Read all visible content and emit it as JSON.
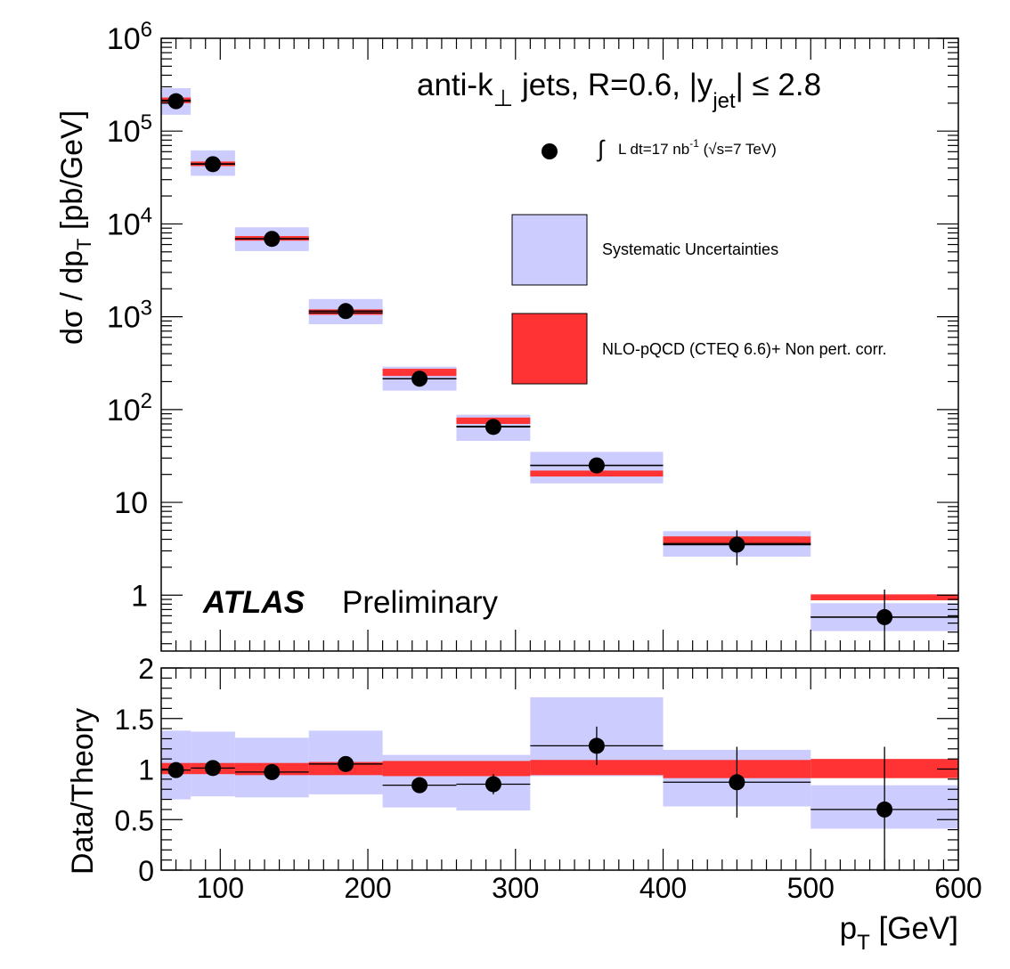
{
  "colors": {
    "systematic": "#ccccff",
    "nlo": "#ff3333",
    "data": "#000000"
  },
  "annotations": {
    "jet_label": "anti-k⊥  jets,  R=0.6,  |yjet| ≤ 2.8",
    "jet_label_prefix": "anti-k",
    "jet_label_perp": "⊥",
    "jet_label_mid": "  jets,  R=0.6,  |y",
    "jet_label_sub": "jet",
    "jet_label_suffix": "| ≤ 2.8",
    "atlas": "ATLAS",
    "preliminary": "Preliminary"
  },
  "legend": {
    "data_label": "∫ L dt=17 nb-1 (√s=7 TeV)",
    "data_label_integral": "∫",
    "data_label_text": "L dt=17 nb",
    "data_label_sup": "-1",
    "data_label_energy": " (√s=7 TeV)",
    "syst_label": "Systematic Uncertainties",
    "nlo_label": "NLO-pQCD (CTEQ 6.6)+ Non pert. corr."
  },
  "chart_data": [
    {
      "type": "scatter",
      "name": "cross-section",
      "title": "",
      "ylabel": "dσ / dpT [pb/GeV]",
      "ylabel_prefix": "dσ / dp",
      "ylabel_sub": "T",
      "ylabel_suffix": " [pb/GeV]",
      "yscale": "log",
      "xlim": [
        60,
        600
      ],
      "ylim": [
        0.25,
        1000000
      ],
      "yticks": [
        {
          "value": 1,
          "label": "1"
        },
        {
          "value": 10,
          "label": "10"
        },
        {
          "value": 100,
          "label": "10",
          "exp": "2"
        },
        {
          "value": 1000,
          "label": "10",
          "exp": "3"
        },
        {
          "value": 10000,
          "label": "10",
          "exp": "4"
        },
        {
          "value": 100000,
          "label": "10",
          "exp": "5"
        },
        {
          "value": 1000000,
          "label": "10",
          "exp": "6"
        }
      ],
      "bins": [
        {
          "lo": 60,
          "hi": 80,
          "x": 70,
          "y": 210000,
          "syst": [
            150000,
            290000
          ],
          "nlo": [
            200000,
            230000
          ],
          "nlo_line": 215000
        },
        {
          "lo": 80,
          "hi": 110,
          "x": 95,
          "y": 44000,
          "syst": [
            33000,
            62000
          ],
          "nlo": [
            42000,
            47000
          ],
          "nlo_line": 44500
        },
        {
          "lo": 110,
          "hi": 160,
          "x": 135,
          "y": 6900,
          "syst": [
            5100,
            9200
          ],
          "nlo": [
            6600,
            7400
          ],
          "nlo_line": 6950
        },
        {
          "lo": 160,
          "hi": 210,
          "x": 185,
          "y": 1150,
          "syst": [
            830,
            1550
          ],
          "nlo": [
            1050,
            1200
          ],
          "nlo_line": 1100
        },
        {
          "lo": 210,
          "hi": 260,
          "x": 235,
          "y": 215,
          "syst": [
            160,
            290
          ],
          "nlo": [
            230,
            275
          ],
          "nlo_line": 215
        },
        {
          "lo": 260,
          "hi": 310,
          "x": 285,
          "y": 65,
          "syst": [
            46,
            88
          ],
          "nlo": [
            70,
            82
          ],
          "nlo_line": 66
        },
        {
          "lo": 310,
          "hi": 400,
          "x": 355,
          "y": 25,
          "syst": [
            16,
            35
          ],
          "nlo": [
            19,
            22
          ],
          "nlo_line": 25
        },
        {
          "lo": 400,
          "hi": 500,
          "x": 450,
          "y": 3.5,
          "syst": [
            2.6,
            4.9
          ],
          "nlo": [
            3.5,
            4.3
          ],
          "nlo_line": 3.6,
          "yerr": [
            2.1,
            5.0
          ]
        },
        {
          "lo": 500,
          "hi": 600,
          "x": 550,
          "y": 0.58,
          "syst": [
            0.41,
            0.82
          ],
          "nlo": [
            0.88,
            1.02
          ],
          "nlo_line": 0.58,
          "yerr": [
            0.25,
            1.15
          ]
        }
      ]
    },
    {
      "type": "scatter",
      "name": "ratio",
      "ylabel": "Data/Theory",
      "xlabel": "pT [GeV]",
      "xlabel_prefix": "p",
      "xlabel_sub": "T",
      "xlabel_suffix": " [GeV]",
      "xlim": [
        60,
        600
      ],
      "ylim": [
        0,
        2
      ],
      "xticks": [
        100,
        200,
        300,
        400,
        500,
        600
      ],
      "yticks": [
        {
          "value": 0,
          "label": "0"
        },
        {
          "value": 0.5,
          "label": "0.5"
        },
        {
          "value": 1,
          "label": "1"
        },
        {
          "value": 1.5,
          "label": "1.5"
        },
        {
          "value": 2,
          "label": "2"
        }
      ],
      "bins": [
        {
          "lo": 60,
          "hi": 80,
          "x": 70,
          "y": 0.99,
          "syst": [
            0.7,
            1.38
          ],
          "nlo": [
            0.95,
            1.06
          ],
          "yerr": [
            0.96,
            1.02
          ]
        },
        {
          "lo": 80,
          "hi": 110,
          "x": 95,
          "y": 1.01,
          "syst": [
            0.73,
            1.37
          ],
          "nlo": [
            0.95,
            1.06
          ],
          "yerr": [
            0.97,
            1.04
          ]
        },
        {
          "lo": 110,
          "hi": 160,
          "x": 135,
          "y": 0.97,
          "syst": [
            0.72,
            1.31
          ],
          "nlo": [
            0.94,
            1.06
          ],
          "yerr": [
            0.94,
            1.01
          ]
        },
        {
          "lo": 160,
          "hi": 210,
          "x": 185,
          "y": 1.05,
          "syst": [
            0.75,
            1.38
          ],
          "nlo": [
            0.94,
            1.07
          ],
          "yerr": [
            1.01,
            1.09
          ]
        },
        {
          "lo": 210,
          "hi": 260,
          "x": 235,
          "y": 0.84,
          "syst": [
            0.62,
            1.14
          ],
          "nlo": [
            0.93,
            1.08
          ],
          "yerr": [
            0.8,
            0.88
          ]
        },
        {
          "lo": 260,
          "hi": 310,
          "x": 285,
          "y": 0.85,
          "syst": [
            0.59,
            1.14
          ],
          "nlo": [
            0.93,
            1.08
          ],
          "yerr": [
            0.75,
            0.95
          ]
        },
        {
          "lo": 310,
          "hi": 400,
          "x": 355,
          "y": 1.23,
          "syst": [
            0.93,
            1.71
          ],
          "nlo": [
            0.94,
            1.09
          ],
          "yerr": [
            1.04,
            1.42
          ]
        },
        {
          "lo": 400,
          "hi": 500,
          "x": 450,
          "y": 0.87,
          "syst": [
            0.63,
            1.19
          ],
          "nlo": [
            0.91,
            1.09
          ],
          "yerr": [
            0.52,
            1.22
          ]
        },
        {
          "lo": 500,
          "hi": 600,
          "x": 550,
          "y": 0.6,
          "syst": [
            0.41,
            0.84
          ],
          "nlo": [
            0.91,
            1.1
          ],
          "yerr": [
            0.0,
            1.22
          ]
        }
      ]
    }
  ]
}
